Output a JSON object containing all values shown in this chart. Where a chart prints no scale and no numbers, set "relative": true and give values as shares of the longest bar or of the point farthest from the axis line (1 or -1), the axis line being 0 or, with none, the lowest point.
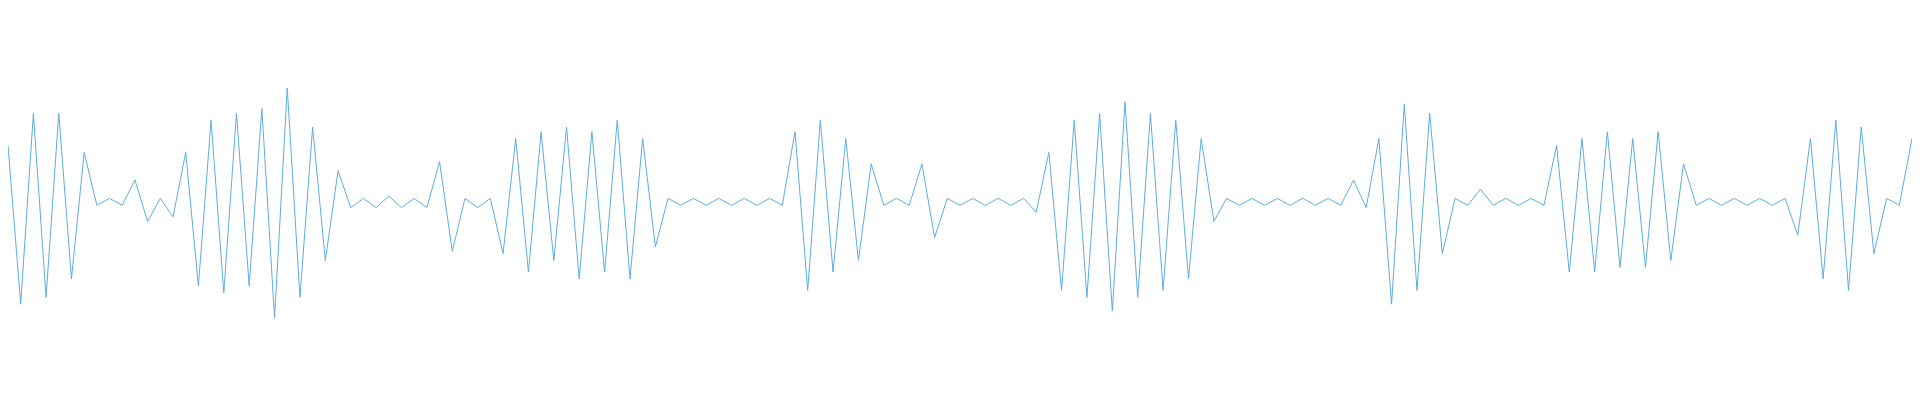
{
  "chart_data": {
    "type": "line",
    "relative": true,
    "marker": "none",
    "categories": [
      null,
      null,
      null,
      null,
      null,
      null,
      null,
      null,
      null,
      null,
      null,
      null,
      null,
      null,
      null,
      null,
      null,
      null,
      null,
      null,
      null,
      null,
      null,
      null,
      null,
      null,
      null,
      null,
      null,
      null,
      null,
      null,
      null,
      null,
      null,
      null,
      null,
      null,
      null,
      null,
      null,
      null,
      null,
      null,
      null,
      null,
      null,
      null,
      null,
      null,
      null,
      null,
      null,
      null,
      null,
      null,
      null,
      null,
      null,
      null,
      null,
      null,
      null,
      null,
      null,
      null,
      null,
      null,
      null,
      null,
      null,
      null,
      null,
      null,
      null,
      null,
      null,
      null,
      null,
      null,
      null,
      null,
      null,
      null,
      null,
      null,
      null,
      null,
      null,
      null,
      null,
      null,
      null,
      null,
      null,
      null,
      null,
      null,
      null,
      null,
      null,
      null,
      null,
      null,
      null,
      null,
      null,
      null,
      null,
      null,
      null,
      null,
      null,
      null,
      null,
      null,
      null,
      null,
      null,
      null,
      null,
      null,
      null,
      null,
      null,
      null,
      null,
      null,
      null,
      null,
      null,
      null,
      null,
      null,
      null,
      null,
      null,
      null,
      null,
      null,
      null,
      null,
      null,
      null,
      null,
      null,
      null,
      null,
      null,
      null,
      null
    ],
    "series": [
      {
        "color": "#5dade2",
        "values": [
          0.75,
          0.06,
          0.89,
          0.09,
          0.89,
          0.17,
          0.72,
          0.49,
          0.52,
          0.49,
          0.6,
          0.42,
          0.52,
          0.44,
          0.72,
          0.14,
          0.86,
          0.11,
          0.89,
          0.14,
          0.91,
          0.0,
          1.0,
          0.09,
          0.83,
          0.25,
          0.64,
          0.48,
          0.52,
          0.48,
          0.53,
          0.48,
          0.52,
          0.48,
          0.68,
          0.29,
          0.52,
          0.48,
          0.52,
          0.28,
          0.78,
          0.2,
          0.81,
          0.25,
          0.83,
          0.17,
          0.81,
          0.2,
          0.86,
          0.17,
          0.78,
          0.31,
          0.52,
          0.49,
          0.52,
          0.49,
          0.52,
          0.49,
          0.52,
          0.49,
          0.52,
          0.49,
          0.81,
          0.12,
          0.86,
          0.2,
          0.78,
          0.25,
          0.67,
          0.49,
          0.52,
          0.49,
          0.67,
          0.35,
          0.52,
          0.49,
          0.52,
          0.49,
          0.52,
          0.49,
          0.52,
          0.46,
          0.72,
          0.12,
          0.86,
          0.09,
          0.89,
          0.03,
          0.94,
          0.09,
          0.89,
          0.12,
          0.86,
          0.17,
          0.78,
          0.42,
          0.52,
          0.49,
          0.52,
          0.49,
          0.52,
          0.49,
          0.52,
          0.49,
          0.52,
          0.49,
          0.6,
          0.48,
          0.78,
          0.06,
          0.93,
          0.12,
          0.89,
          0.28,
          0.52,
          0.49,
          0.56,
          0.49,
          0.52,
          0.49,
          0.52,
          0.49,
          0.75,
          0.2,
          0.78,
          0.2,
          0.81,
          0.22,
          0.78,
          0.22,
          0.81,
          0.25,
          0.67,
          0.49,
          0.52,
          0.49,
          0.52,
          0.49,
          0.52,
          0.49,
          0.52,
          0.36,
          0.78,
          0.17,
          0.86,
          0.12,
          0.83,
          0.28,
          0.52,
          0.49,
          0.78
        ]
      }
    ]
  }
}
